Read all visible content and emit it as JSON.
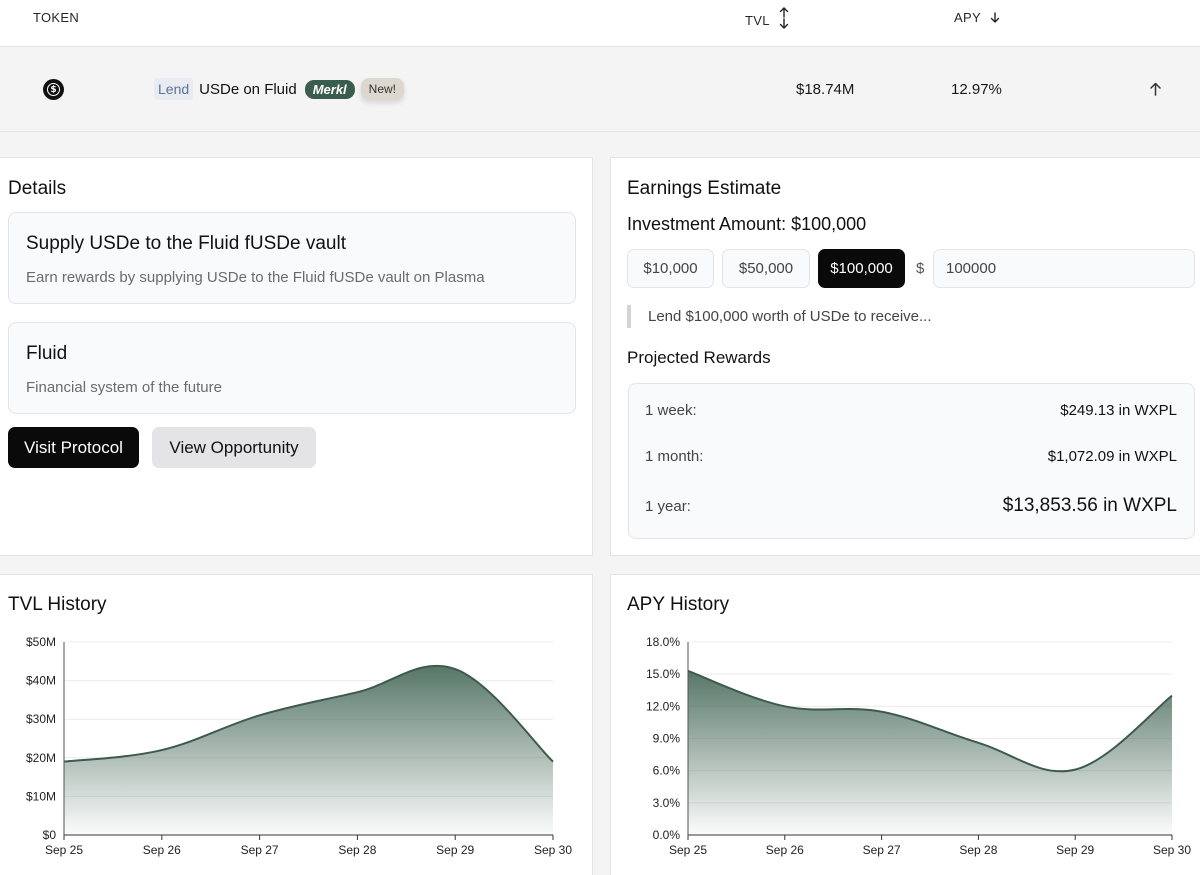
{
  "table": {
    "headers": {
      "token": "TOKEN",
      "tvl": "TVL",
      "apy": "APY"
    },
    "row": {
      "tag": "Lend",
      "name": "USDe on Fluid",
      "badge_merkl": "Merkl",
      "badge_new": "New!",
      "tvl": "$18.74M",
      "apy": "12.97%"
    }
  },
  "details": {
    "title": "Details",
    "card1": {
      "title": "Supply USDe to the Fluid fUSDe vault",
      "desc": "Earn rewards by supplying USDe to the Fluid fUSDe vault on Plasma"
    },
    "card2": {
      "title": "Fluid",
      "desc": "Financial system of the future"
    },
    "visit_button": "Visit Protocol",
    "view_button": "View Opportunity"
  },
  "earnings": {
    "title": "Earnings Estimate",
    "investment_label": "Investment Amount: $100,000",
    "amounts": [
      "$10,000",
      "$50,000",
      "$100,000"
    ],
    "selected_amount": "$100,000",
    "currency_symbol": "$",
    "input_value": "100000",
    "quote": "Lend $100,000 worth of USDe to receive...",
    "projected_title": "Projected Rewards",
    "rewards": [
      {
        "label": "1 week:",
        "value": "$249.13 in WXPL"
      },
      {
        "label": "1 month:",
        "value": "$1,072.09 in WXPL"
      },
      {
        "label": "1 year:",
        "value": "$13,853.56 in WXPL"
      }
    ]
  },
  "colors": {
    "accent_dark_green": "#3b5d4d",
    "chart_line": "#3d5a4d",
    "primary_button": "#0a0a0a"
  },
  "chart_data": [
    {
      "type": "area",
      "title": "TVL History",
      "x": [
        "Sep 25",
        "Sep 26",
        "Sep 27",
        "Sep 28",
        "Sep 29",
        "Sep 30"
      ],
      "y_tick_labels": [
        "$0",
        "$10M",
        "$20M",
        "$30M",
        "$40M",
        "$50M"
      ],
      "ylim": [
        0,
        50
      ],
      "y_unit": "M",
      "series": [
        {
          "values": [
            19,
            22,
            31,
            37,
            43,
            19
          ]
        }
      ],
      "grid": true
    },
    {
      "type": "area",
      "title": "APY History",
      "x": [
        "Sep 25",
        "Sep 26",
        "Sep 27",
        "Sep 28",
        "Sep 29",
        "Sep 30"
      ],
      "y_tick_labels": [
        "0.0%",
        "3.0%",
        "6.0%",
        "9.0%",
        "12.0%",
        "15.0%",
        "18.0%"
      ],
      "ylim": [
        0,
        18
      ],
      "series": [
        {
          "values": [
            15.3,
            12.0,
            11.5,
            8.6,
            6.1,
            13.0
          ]
        }
      ],
      "grid": true
    }
  ]
}
